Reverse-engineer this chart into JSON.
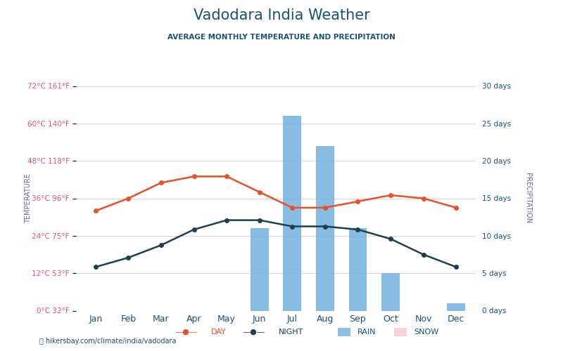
{
  "title": "Vadodara India Weather",
  "subtitle": "AVERAGE MONTHLY TEMPERATURE AND PRECIPITATION",
  "months": [
    "Jan",
    "Feb",
    "Mar",
    "Apr",
    "May",
    "Jun",
    "Jul",
    "Aug",
    "Sep",
    "Oct",
    "Nov",
    "Dec"
  ],
  "day_temp": [
    32,
    36,
    41,
    43,
    43,
    38,
    33,
    33,
    35,
    37,
    36,
    33
  ],
  "night_temp": [
    14,
    17,
    21,
    26,
    29,
    29,
    27,
    27,
    26,
    23,
    18,
    14
  ],
  "rain_days": [
    0,
    0,
    0,
    0,
    0,
    11,
    26,
    22,
    11,
    5,
    0,
    1
  ],
  "snow_days": [
    0,
    0,
    0,
    0,
    0,
    0,
    0,
    0,
    0,
    0,
    0,
    0
  ],
  "ylim_left": [
    0,
    72
  ],
  "ylim_right": [
    0,
    30
  ],
  "yticks_left_c": [
    0,
    12,
    24,
    36,
    48,
    60,
    72
  ],
  "yticks_left_f": [
    32,
    53,
    75,
    96,
    118,
    140,
    161
  ],
  "yticks_right": [
    0,
    5,
    10,
    15,
    20,
    25,
    30
  ],
  "day_color": "#e8502a",
  "night_color": "#1c3f52",
  "rain_color": "#7ab5e0",
  "snow_color": "#f9d0e0",
  "title_color": "#1a5276",
  "subtitle_color": "#1a5276",
  "left_label_color": "#e05080",
  "right_label_color": "#1a5276",
  "grid_color": "#d5d5d5",
  "background_color": "#ffffff",
  "footer_text": "hikersbay.com/climate/india/vadodara",
  "axis_label_color": "#6666aa"
}
